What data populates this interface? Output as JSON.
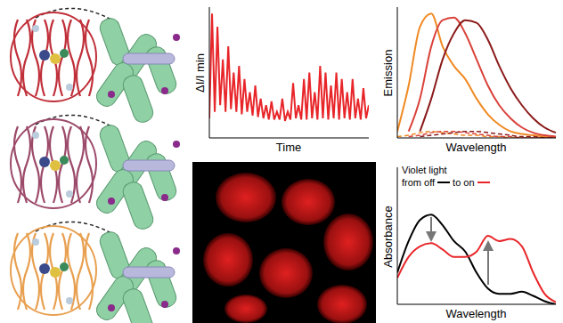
{
  "chart_data": [
    {
      "type": "line",
      "y_label": "ΔI/I min",
      "x_label": "Time",
      "tick_labels": false,
      "x": [
        0,
        1,
        2,
        3,
        4,
        5,
        6,
        7,
        8,
        9,
        10,
        11,
        12,
        13,
        14,
        15,
        16,
        17,
        18,
        19,
        20,
        21,
        22,
        23,
        24,
        25,
        26,
        27,
        28,
        29,
        30,
        31,
        32,
        33,
        34,
        35,
        36,
        37,
        38,
        39,
        40,
        41,
        42,
        43,
        44,
        45,
        46,
        47,
        48,
        49,
        50,
        51,
        52,
        53,
        54,
        55,
        56,
        57,
        58,
        59
      ],
      "xlim": [
        0,
        59
      ],
      "ylim": [
        0,
        1
      ],
      "series": [
        {
          "color": "#e8262a",
          "line_style": "solid",
          "values": [
            0.15,
            0.95,
            0.2,
            0.85,
            0.25,
            0.6,
            0.2,
            0.7,
            0.22,
            0.5,
            0.2,
            0.55,
            0.18,
            0.45,
            0.2,
            0.35,
            0.17,
            0.4,
            0.16,
            0.3,
            0.15,
            0.25,
            0.14,
            0.28,
            0.14,
            0.2,
            0.14,
            0.3,
            0.13,
            0.2,
            0.14,
            0.42,
            0.15,
            0.25,
            0.14,
            0.45,
            0.14,
            0.5,
            0.15,
            0.35,
            0.14,
            0.55,
            0.15,
            0.5,
            0.14,
            0.4,
            0.15,
            0.5,
            0.14,
            0.45,
            0.15,
            0.35,
            0.14,
            0.45,
            0.15,
            0.3,
            0.14,
            0.38,
            0.15,
            0.25
          ]
        }
      ]
    },
    {
      "type": "line",
      "y_label": "Emission",
      "x_label": "Wavelength",
      "tick_labels": false,
      "x": [
        0,
        1,
        2,
        3,
        4,
        5,
        6,
        7,
        8,
        9,
        10,
        11,
        12,
        13,
        14
      ],
      "xlim": [
        0,
        14
      ],
      "ylim": [
        0,
        1
      ],
      "series": [
        {
          "color": "#f08a24",
          "line_style": "solid",
          "values": [
            0.05,
            0.4,
            0.85,
            0.95,
            0.7,
            0.55,
            0.45,
            0.3,
            0.18,
            0.1,
            0.05,
            0.03,
            0.02,
            0.01,
            0
          ]
        },
        {
          "color": "#d9423a",
          "line_style": "solid",
          "values": [
            null,
            0.05,
            0.3,
            0.7,
            0.9,
            0.92,
            0.8,
            0.6,
            0.4,
            0.25,
            0.15,
            0.08,
            0.04,
            0.02,
            0.01
          ]
        },
        {
          "color": "#8b1a1a",
          "line_style": "solid",
          "values": [
            null,
            null,
            0.05,
            0.3,
            0.6,
            0.8,
            0.9,
            0.88,
            0.75,
            0.55,
            0.38,
            0.25,
            0.15,
            0.08,
            0.04
          ]
        },
        {
          "color": "#f08a24",
          "line_style": "dashed",
          "values": [
            0.01,
            0.02,
            0.04,
            0.05,
            0.04,
            0.03,
            0.02,
            0.02,
            0.01,
            0.01,
            0,
            0,
            0,
            0,
            0
          ]
        },
        {
          "color": "#d9423a",
          "line_style": "dashed",
          "values": [
            null,
            0.01,
            0.02,
            0.04,
            0.05,
            0.05,
            0.04,
            0.03,
            0.02,
            0.01,
            0.01,
            0,
            0,
            0,
            0
          ]
        },
        {
          "color": "#8b1a1a",
          "line_style": "dashed",
          "values": [
            null,
            null,
            0.01,
            0.02,
            0.03,
            0.04,
            0.05,
            0.05,
            0.04,
            0.03,
            0.02,
            0.01,
            0.01,
            0,
            0
          ]
        }
      ]
    },
    {
      "type": "line",
      "y_label": "Absorbance",
      "x_label": "Wavelength",
      "tick_labels": false,
      "annotations": [
        "Violet light",
        "from off",
        "to on"
      ],
      "x": [
        0,
        1,
        2,
        3,
        4,
        5,
        6,
        7,
        8,
        9,
        10,
        11,
        12,
        13,
        14
      ],
      "xlim": [
        0,
        14
      ],
      "ylim": [
        0,
        1.3
      ],
      "series": [
        {
          "color": "#000000",
          "line_style": "solid",
          "values": [
            0.3,
            0.6,
            0.8,
            0.85,
            0.75,
            0.6,
            0.5,
            0.3,
            0.15,
            0.1,
            0.1,
            0.12,
            0.08,
            0.03,
            0
          ]
        },
        {
          "color": "#e8262a",
          "line_style": "solid",
          "values": [
            0.25,
            0.45,
            0.55,
            0.58,
            0.52,
            0.45,
            0.45,
            0.5,
            0.65,
            0.6,
            0.62,
            0.55,
            0.3,
            0.1,
            0.02
          ]
        }
      ]
    }
  ]
}
